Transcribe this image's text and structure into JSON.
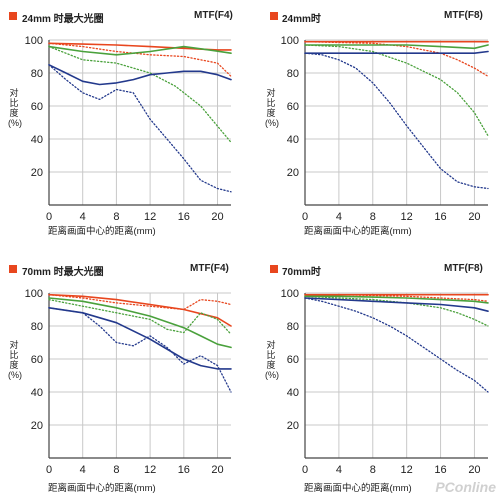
{
  "colors": {
    "red": "#e8461e",
    "green": "#4aa13c",
    "blue": "#23398c",
    "grid": "#c8c8c8",
    "frame": "#444444"
  },
  "watermark": "PConline",
  "chart_data": [
    {
      "type": "line",
      "title": "24mm 时最大光圈",
      "label_right": "MTF(F4)",
      "ylabel": "对比度 (%)",
      "xlabel": "距离画面中心的距离(mm)",
      "xlim": [
        0,
        21.6
      ],
      "ylim": [
        0,
        100
      ],
      "xticks": [
        0,
        4,
        8,
        12,
        16,
        20
      ],
      "yticks": [
        20,
        40,
        60,
        80,
        100
      ],
      "grid": true,
      "series": [
        {
          "color": "red",
          "style": "solid",
          "x": [
            0,
            4,
            8,
            12,
            16,
            20,
            21.6
          ],
          "y": [
            98,
            97.5,
            97,
            96,
            95,
            94,
            94
          ]
        },
        {
          "color": "red",
          "style": "dotted",
          "x": [
            0,
            4,
            8,
            12,
            16,
            20,
            21.6
          ],
          "y": [
            98,
            96,
            93,
            91,
            90,
            86,
            78
          ]
        },
        {
          "color": "green",
          "style": "solid",
          "x": [
            0,
            4,
            8,
            12,
            16,
            19,
            21.6
          ],
          "y": [
            96,
            93,
            91,
            93,
            96,
            94,
            92
          ]
        },
        {
          "color": "green",
          "style": "dotted",
          "x": [
            0,
            4,
            8,
            12,
            15,
            18,
            21.6
          ],
          "y": [
            96,
            88,
            86,
            80,
            72,
            60,
            38
          ]
        },
        {
          "color": "blue",
          "style": "solid",
          "x": [
            0,
            2,
            4,
            6,
            8,
            10,
            12,
            14,
            16,
            18,
            20,
            21.6
          ],
          "y": [
            85,
            80,
            75,
            73,
            74,
            76,
            79,
            80,
            81,
            81,
            79,
            76
          ]
        },
        {
          "color": "blue",
          "style": "dotted",
          "x": [
            0,
            2,
            4,
            6,
            8,
            10,
            12,
            14,
            16,
            18,
            20,
            21.6
          ],
          "y": [
            85,
            76,
            68,
            64,
            70,
            68,
            52,
            40,
            28,
            15,
            10,
            8
          ]
        }
      ]
    },
    {
      "type": "line",
      "title": "24mm时",
      "label_right": "MTF(F8)",
      "ylabel": "对比度 (%)",
      "xlabel": "距离画面中心的距离(mm)",
      "xlim": [
        0,
        21.6
      ],
      "ylim": [
        0,
        100
      ],
      "xticks": [
        0,
        4,
        8,
        12,
        16,
        20
      ],
      "yticks": [
        20,
        40,
        60,
        80,
        100
      ],
      "grid": true,
      "series": [
        {
          "color": "red",
          "style": "solid",
          "x": [
            0,
            4,
            8,
            12,
            16,
            20,
            21.6
          ],
          "y": [
            99,
            99,
            99,
            99,
            99,
            99,
            99
          ]
        },
        {
          "color": "red",
          "style": "dotted",
          "x": [
            0,
            4,
            8,
            12,
            16,
            18,
            20,
            21.6
          ],
          "y": [
            99,
            98.5,
            98,
            96,
            92,
            88,
            83,
            78
          ]
        },
        {
          "color": "green",
          "style": "solid",
          "x": [
            0,
            4,
            8,
            12,
            16,
            20,
            21.6
          ],
          "y": [
            97,
            97,
            97,
            97,
            96,
            95,
            97
          ]
        },
        {
          "color": "green",
          "style": "dotted",
          "x": [
            0,
            4,
            8,
            12,
            16,
            18,
            20,
            21.6
          ],
          "y": [
            97,
            96,
            93,
            86,
            76,
            68,
            56,
            42
          ]
        },
        {
          "color": "blue",
          "style": "solid",
          "x": [
            0,
            4,
            8,
            12,
            16,
            20,
            21.6
          ],
          "y": [
            92,
            92,
            92,
            92,
            92,
            92,
            93
          ]
        },
        {
          "color": "blue",
          "style": "dotted",
          "x": [
            0,
            2,
            4,
            6,
            8,
            10,
            12,
            14,
            16,
            18,
            20,
            21.6
          ],
          "y": [
            92,
            91,
            88,
            83,
            74,
            62,
            48,
            35,
            22,
            14,
            11,
            10
          ]
        }
      ]
    },
    {
      "type": "line",
      "title": "70mm 时最大光圈",
      "label_right": "MTF(F4)",
      "ylabel": "对比度 (%)",
      "xlabel": "距离画面中心的距离(mm)",
      "xlim": [
        0,
        21.6
      ],
      "ylim": [
        0,
        100
      ],
      "xticks": [
        0,
        4,
        8,
        12,
        16,
        20
      ],
      "yticks": [
        20,
        40,
        60,
        80,
        100
      ],
      "grid": true,
      "series": [
        {
          "color": "red",
          "style": "solid",
          "x": [
            0,
            4,
            8,
            12,
            16,
            20,
            21.6
          ],
          "y": [
            99,
            98,
            96,
            93,
            90,
            85,
            80
          ]
        },
        {
          "color": "red",
          "style": "dotted",
          "x": [
            0,
            4,
            8,
            12,
            16,
            18,
            20,
            21.6
          ],
          "y": [
            99,
            97,
            94,
            92,
            90,
            96,
            95,
            93
          ]
        },
        {
          "color": "green",
          "style": "solid",
          "x": [
            0,
            4,
            8,
            12,
            16,
            18,
            20,
            21.6
          ],
          "y": [
            97,
            95,
            91,
            86,
            79,
            74,
            69,
            67
          ]
        },
        {
          "color": "green",
          "style": "dotted",
          "x": [
            0,
            4,
            8,
            12,
            14,
            16,
            18,
            20,
            21.6
          ],
          "y": [
            96,
            92,
            88,
            84,
            78,
            76,
            88,
            84,
            75
          ]
        },
        {
          "color": "blue",
          "style": "solid",
          "x": [
            0,
            4,
            8,
            12,
            16,
            18,
            20,
            21.6
          ],
          "y": [
            91,
            88,
            82,
            72,
            60,
            56,
            54,
            54
          ]
        },
        {
          "color": "blue",
          "style": "dotted",
          "x": [
            0,
            4,
            6,
            8,
            10,
            12,
            14,
            16,
            18,
            20,
            21.6
          ],
          "y": [
            91,
            88,
            80,
            70,
            68,
            74,
            67,
            57,
            62,
            56,
            40
          ]
        }
      ]
    },
    {
      "type": "line",
      "title": "70mm时",
      "label_right": "MTF(F8)",
      "ylabel": "对比度 (%)",
      "xlabel": "距离画面中心的距离(mm)",
      "xlim": [
        0,
        21.6
      ],
      "ylim": [
        0,
        100
      ],
      "xticks": [
        0,
        4,
        8,
        12,
        16,
        20
      ],
      "yticks": [
        20,
        40,
        60,
        80,
        100
      ],
      "grid": true,
      "series": [
        {
          "color": "red",
          "style": "solid",
          "x": [
            0,
            4,
            8,
            12,
            16,
            20,
            21.6
          ],
          "y": [
            99,
            99,
            99,
            99,
            99,
            99,
            99
          ]
        },
        {
          "color": "red",
          "style": "dotted",
          "x": [
            0,
            4,
            8,
            12,
            16,
            20,
            21.6
          ],
          "y": [
            99,
            99,
            98.5,
            98,
            97,
            96,
            95
          ]
        },
        {
          "color": "green",
          "style": "solid",
          "x": [
            0,
            4,
            8,
            12,
            16,
            20,
            21.6
          ],
          "y": [
            98,
            98,
            97.5,
            97,
            96,
            95,
            94
          ]
        },
        {
          "color": "green",
          "style": "dotted",
          "x": [
            0,
            4,
            8,
            12,
            16,
            18,
            20,
            21.6
          ],
          "y": [
            98,
            97,
            96,
            94,
            91,
            88,
            84,
            80
          ]
        },
        {
          "color": "blue",
          "style": "solid",
          "x": [
            0,
            4,
            8,
            12,
            16,
            20,
            21.6
          ],
          "y": [
            97,
            96,
            95,
            94,
            93,
            91,
            89
          ]
        },
        {
          "color": "blue",
          "style": "dotted",
          "x": [
            0,
            2,
            4,
            6,
            8,
            10,
            12,
            14,
            16,
            18,
            20,
            21.6
          ],
          "y": [
            97,
            95,
            92,
            89,
            85,
            80,
            74,
            67,
            60,
            53,
            47,
            40
          ]
        }
      ]
    }
  ]
}
